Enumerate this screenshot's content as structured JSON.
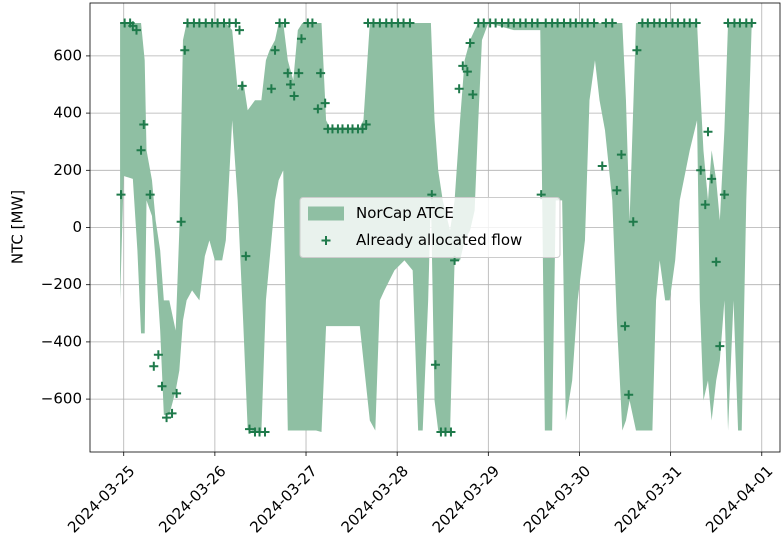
{
  "chart_data": {
    "type": "area_scatter",
    "ylabel": "NTC [MW]",
    "xlim": [
      -0.37,
      7.2
    ],
    "ylim": [
      -785,
      785
    ],
    "xticks": [
      {
        "value": 0,
        "label": "2024-03-25"
      },
      {
        "value": 1,
        "label": "2024-03-26"
      },
      {
        "value": 2,
        "label": "2024-03-27"
      },
      {
        "value": 3,
        "label": "2024-03-28"
      },
      {
        "value": 4,
        "label": "2024-03-29"
      },
      {
        "value": 5,
        "label": "2024-03-30"
      },
      {
        "value": 6,
        "label": "2024-03-31"
      },
      {
        "value": 7,
        "label": "2024-04-01"
      }
    ],
    "yticks": [
      {
        "value": -600,
        "label": "−600"
      },
      {
        "value": -400,
        "label": "−400"
      },
      {
        "value": -200,
        "label": "−200"
      },
      0,
      200,
      400,
      600
    ],
    "grid": true,
    "legend": "center",
    "series": [
      {
        "name": "NorCap ATCE",
        "type": "area",
        "color": "#8fbfa3",
        "x": [
          -0.04,
          0,
          0.1,
          0.15,
          0.19,
          0.23,
          0.25,
          0.31,
          0.35,
          0.4,
          0.44,
          0.5,
          0.57,
          0.61,
          0.65,
          0.69,
          0.75,
          0.83,
          0.89,
          0.94,
          1.0,
          1.08,
          1.12,
          1.19,
          1.25,
          1.31,
          1.36,
          1.44,
          1.51,
          1.56,
          1.6,
          1.66,
          1.7,
          1.75,
          1.8,
          1.86,
          1.91,
          1.96,
          2.04,
          2.11,
          2.17,
          2.22,
          2.26,
          2.37,
          2.48,
          2.59,
          2.63,
          2.7,
          2.76,
          2.81,
          2.86,
          2.97,
          3.08,
          3.17,
          3.23,
          3.28,
          3.34,
          3.37,
          3.41,
          3.45,
          3.5,
          3.58,
          3.63,
          3.69,
          3.74,
          3.8,
          3.85,
          3.89,
          3.93,
          4.0,
          4.28,
          4.57,
          4.62,
          4.7,
          4.74,
          4.81,
          4.85,
          4.92,
          4.98,
          5.06,
          5.11,
          5.17,
          5.22,
          5.28,
          5.36,
          5.41,
          5.47,
          5.51,
          5.55,
          5.62,
          5.72,
          5.8,
          5.84,
          5.88,
          5.94,
          5.99,
          6.05,
          6.1,
          6.21,
          6.29,
          6.32,
          6.36,
          6.41,
          6.45,
          6.5,
          6.54,
          6.59,
          6.63,
          6.69,
          6.74,
          6.78,
          6.83,
          6.89
        ],
        "upper": [
          715,
          715,
          715,
          715,
          715,
          585,
          270,
          165,
          25,
          -80,
          -255,
          -255,
          -360,
          -10,
          655,
          715,
          715,
          715,
          715,
          715,
          715,
          715,
          715,
          690,
          480,
          515,
          410,
          445,
          445,
          585,
          620,
          655,
          715,
          715,
          585,
          515,
          690,
          715,
          715,
          715,
          715,
          375,
          350,
          350,
          350,
          350,
          375,
          715,
          715,
          715,
          715,
          715,
          715,
          715,
          715,
          715,
          715,
          715,
          375,
          200,
          95,
          -10,
          95,
          375,
          585,
          655,
          690,
          715,
          715,
          715,
          715,
          715,
          715,
          715,
          715,
          715,
          715,
          715,
          715,
          715,
          715,
          715,
          715,
          715,
          715,
          715,
          715,
          445,
          25,
          715,
          715,
          715,
          715,
          715,
          715,
          715,
          715,
          715,
          715,
          715,
          515,
          270,
          95,
          270,
          165,
          25,
          340,
          715,
          715,
          715,
          715,
          715,
          715
        ],
        "lower": [
          -255,
          180,
          170,
          -80,
          -370,
          -370,
          95,
          40,
          -115,
          -360,
          -655,
          -655,
          -570,
          -500,
          -325,
          -255,
          -220,
          -255,
          -100,
          -45,
          -115,
          -115,
          -45,
          375,
          95,
          -325,
          -705,
          -715,
          -715,
          -255,
          -115,
          95,
          165,
          200,
          -710,
          -710,
          -710,
          -710,
          -710,
          -710,
          -715,
          -345,
          -345,
          -345,
          -345,
          -345,
          -465,
          -675,
          -710,
          -255,
          -220,
          -150,
          -115,
          -150,
          -710,
          -710,
          -255,
          110,
          -605,
          -710,
          -715,
          -715,
          -115,
          -115,
          -45,
          -10,
          60,
          375,
          655,
          715,
          690,
          690,
          -710,
          -710,
          95,
          95,
          -675,
          -535,
          -255,
          -45,
          445,
          585,
          445,
          340,
          95,
          -325,
          -710,
          -675,
          -605,
          -710,
          -710,
          -710,
          -255,
          -115,
          -255,
          -255,
          -115,
          95,
          270,
          375,
          -255,
          -605,
          -535,
          -675,
          -535,
          -465,
          -255,
          -710,
          -255,
          -710,
          -710,
          95,
          715
        ]
      },
      {
        "name": "Already allocated flow",
        "type": "scatter",
        "color": "#1f7a4b",
        "x": [
          -0.03,
          0.01,
          0.07,
          0.1,
          0.14,
          0.19,
          0.22,
          0.29,
          0.33,
          0.38,
          0.42,
          0.47,
          0.53,
          0.58,
          0.63,
          0.67,
          0.7,
          0.77,
          0.83,
          0.9,
          0.97,
          1.03,
          1.1,
          1.16,
          1.23,
          1.27,
          1.3,
          1.34,
          1.38,
          1.44,
          1.49,
          1.55,
          1.62,
          1.66,
          1.71,
          1.77,
          1.8,
          1.83,
          1.87,
          1.92,
          1.95,
          2.02,
          2.07,
          2.13,
          2.16,
          2.21,
          2.24,
          2.29,
          2.35,
          2.4,
          2.46,
          2.51,
          2.57,
          2.62,
          2.66,
          2.68,
          2.74,
          2.81,
          2.88,
          2.94,
          3.01,
          3.07,
          3.14,
          3.38,
          3.42,
          3.48,
          3.53,
          3.59,
          3.63,
          3.68,
          3.72,
          3.77,
          3.8,
          3.83,
          3.89,
          3.95,
          4.02,
          4.08,
          4.15,
          4.22,
          4.28,
          4.35,
          4.41,
          4.48,
          4.54,
          4.58,
          4.63,
          4.7,
          4.76,
          4.83,
          4.9,
          4.96,
          5.03,
          5.09,
          5.16,
          5.25,
          5.29,
          5.36,
          5.41,
          5.46,
          5.5,
          5.54,
          5.59,
          5.63,
          5.69,
          5.75,
          5.82,
          5.88,
          5.95,
          6.02,
          6.08,
          6.15,
          6.21,
          6.28,
          6.33,
          6.38,
          6.41,
          6.45,
          6.5,
          6.54,
          6.59,
          6.63,
          6.7,
          6.76,
          6.83,
          6.89
        ],
        "values": [
          115,
          715,
          715,
          705,
          690,
          270,
          360,
          115,
          -485,
          -445,
          -555,
          -665,
          -650,
          -580,
          20,
          620,
          715,
          715,
          715,
          715,
          715,
          715,
          715,
          715,
          715,
          690,
          495,
          -100,
          -705,
          -715,
          -715,
          -715,
          485,
          620,
          715,
          715,
          540,
          500,
          460,
          540,
          660,
          715,
          715,
          415,
          540,
          435,
          345,
          345,
          345,
          345,
          345,
          345,
          345,
          345,
          360,
          715,
          715,
          715,
          715,
          715,
          715,
          715,
          715,
          115,
          -480,
          -715,
          -715,
          -715,
          -115,
          485,
          565,
          545,
          645,
          465,
          715,
          715,
          715,
          715,
          715,
          715,
          715,
          715,
          715,
          715,
          715,
          115,
          715,
          715,
          715,
          715,
          715,
          715,
          715,
          715,
          715,
          215,
          715,
          715,
          130,
          255,
          -345,
          -585,
          20,
          620,
          715,
          715,
          715,
          715,
          715,
          715,
          715,
          715,
          715,
          715,
          200,
          80,
          335,
          170,
          -120,
          -415,
          115,
          715,
          715,
          715,
          715,
          715
        ]
      }
    ]
  }
}
